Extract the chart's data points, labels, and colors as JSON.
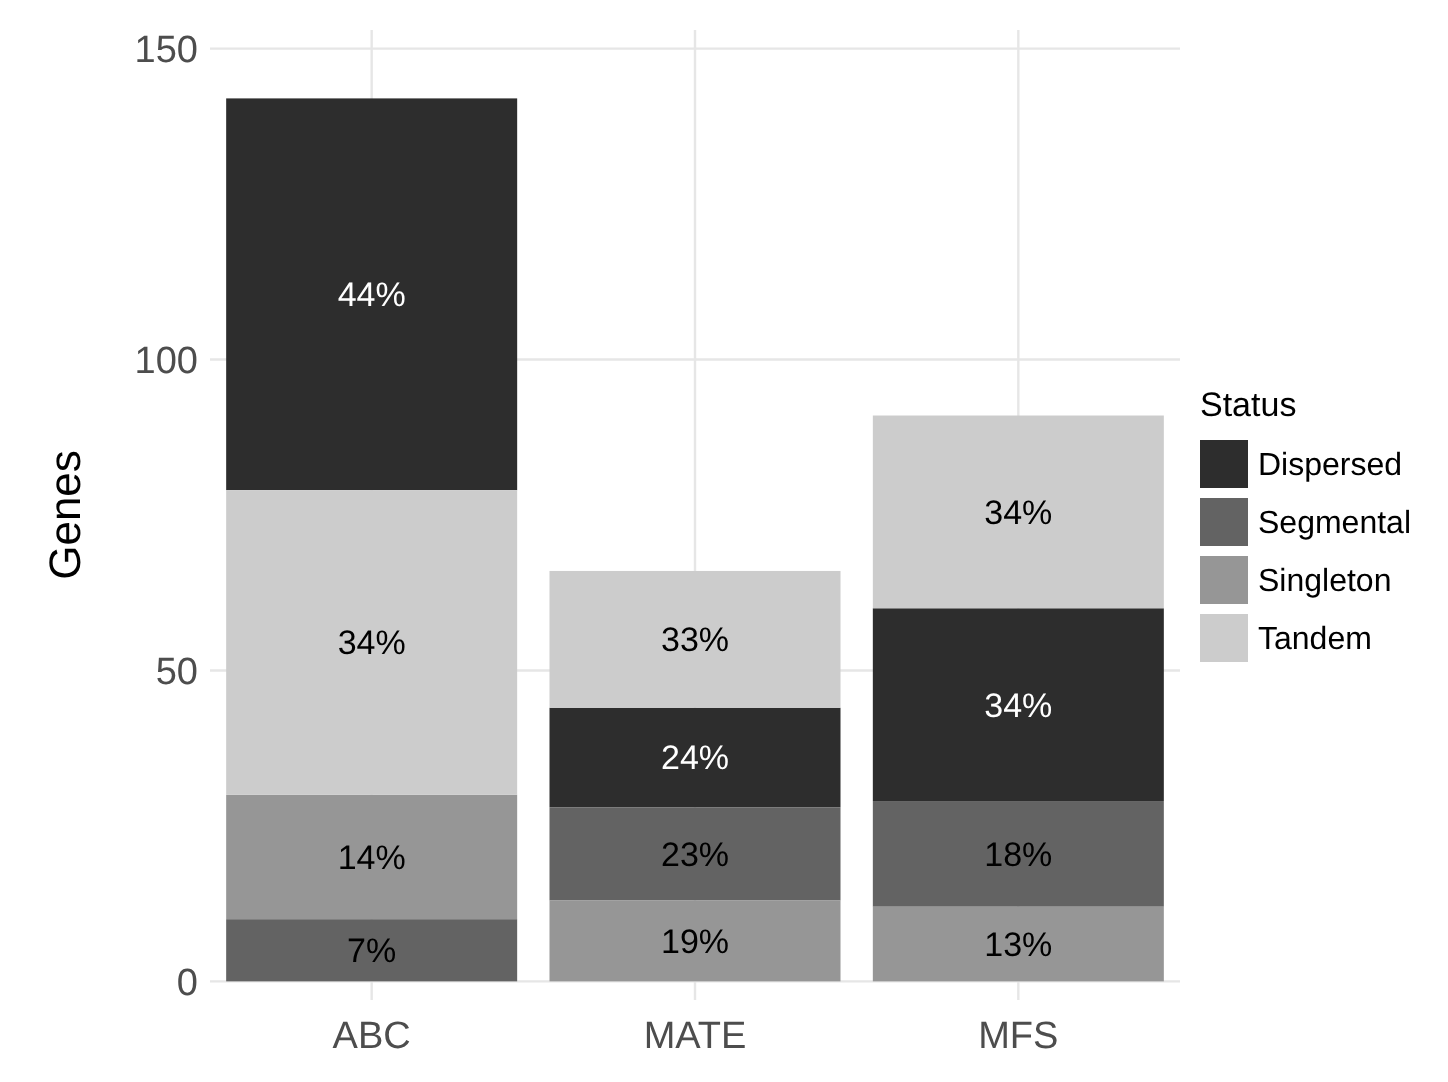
{
  "chart_data": {
    "type": "bar",
    "ylabel": "Genes",
    "legend_title": "Status",
    "categories": [
      "ABC",
      "MATE",
      "MFS"
    ],
    "ylim": [
      -3,
      153
    ],
    "yticks": [
      0,
      50,
      100,
      150
    ],
    "grid": true,
    "legend": "right",
    "series": [
      {
        "name": "Dispersed",
        "color": "#2d2d2d",
        "values": [
          63,
          16,
          31
        ],
        "base": [
          79,
          28,
          29
        ]
      },
      {
        "name": "Segmental",
        "color": "#636363",
        "values": [
          10,
          15,
          17
        ],
        "base": [
          0,
          13,
          12
        ]
      },
      {
        "name": "Singleton",
        "color": "#969696",
        "values": [
          20,
          13,
          12
        ],
        "base": [
          10,
          0,
          0
        ]
      },
      {
        "name": "Tandem",
        "color": "#cccccc",
        "values": [
          49,
          22,
          31
        ],
        "base": [
          30,
          44,
          60
        ]
      }
    ],
    "annotations": [
      "44%",
      "7%",
      "14%",
      "34%",
      "24%",
      "23%",
      "19%",
      "33%",
      "34%",
      "18%",
      "13%",
      "34%"
    ]
  }
}
